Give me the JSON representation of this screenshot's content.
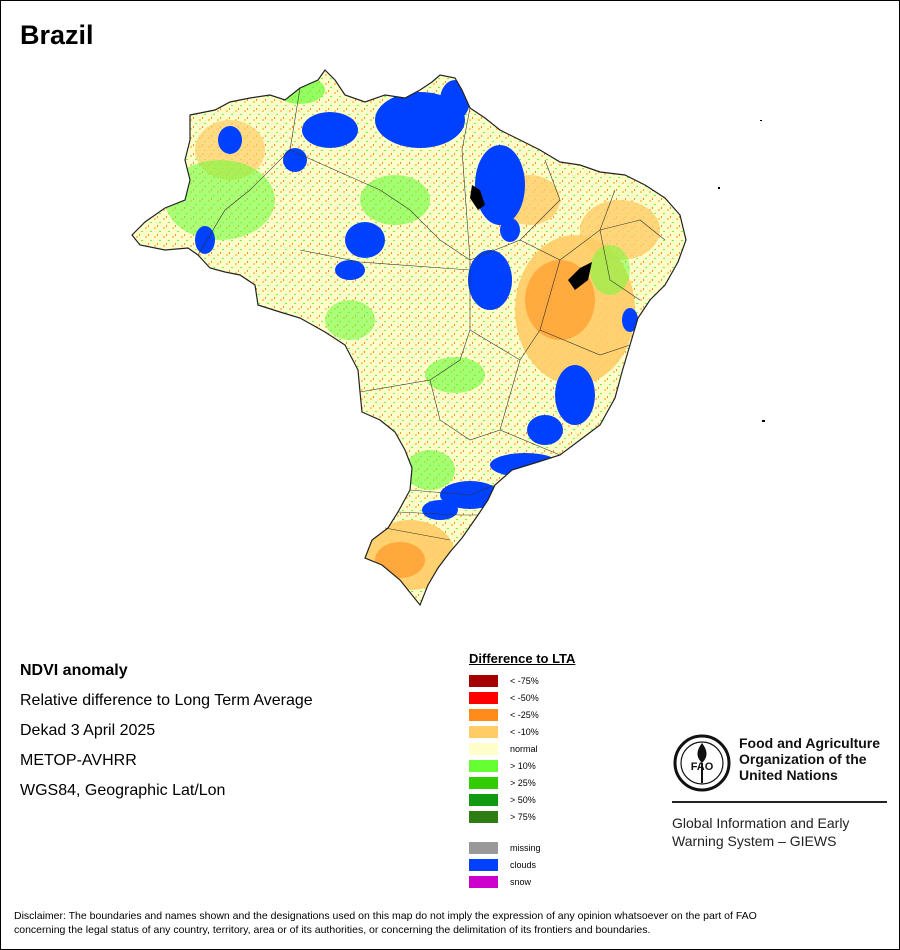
{
  "map": {
    "title": "Brazil"
  },
  "info": {
    "heading": "NDVI anomaly",
    "line1": "Relative difference to Long Term Average",
    "line2": "Dekad 3 April 2025",
    "line3": "METOP-AVHRR",
    "line4": "WGS84, Geographic Lat/Lon"
  },
  "legend": {
    "title": "Difference to LTA",
    "items": [
      {
        "label": "< -75%",
        "color": "#a50000"
      },
      {
        "label": "< -50%",
        "color": "#ff0000"
      },
      {
        "label": "< -25%",
        "color": "#ff8c1a"
      },
      {
        "label": "< -10%",
        "color": "#ffcc66"
      },
      {
        "label": "normal",
        "color": "#ffffcc"
      },
      {
        "label": "> 10%",
        "color": "#66ff33"
      },
      {
        "label": "> 25%",
        "color": "#33cc00"
      },
      {
        "label": "> 50%",
        "color": "#119911"
      },
      {
        "label": "> 75%",
        "color": "#2e7d12"
      }
    ],
    "extra": [
      {
        "label": "missing",
        "color": "#999999"
      },
      {
        "label": "clouds",
        "color": "#0040ff"
      },
      {
        "label": "snow",
        "color": "#cc00cc"
      }
    ]
  },
  "fao": {
    "name_line1": "Food and Agriculture",
    "name_line2": "Organization of the",
    "name_line3": "United Nations",
    "logo_text": "FAO",
    "giews_line1": "Global Information and Early",
    "giews_line2": "Warning System – GIEWS"
  },
  "disclaimer": {
    "line1": "Disclaimer: The boundaries and names shown and the designations used on this map do not imply the expression of any opinion whatsoever on the part of FAO",
    "line2": "concerning the legal status of any country, territory, area or of its authorities, or concerning the delimitation of its frontiers and boundaries."
  }
}
